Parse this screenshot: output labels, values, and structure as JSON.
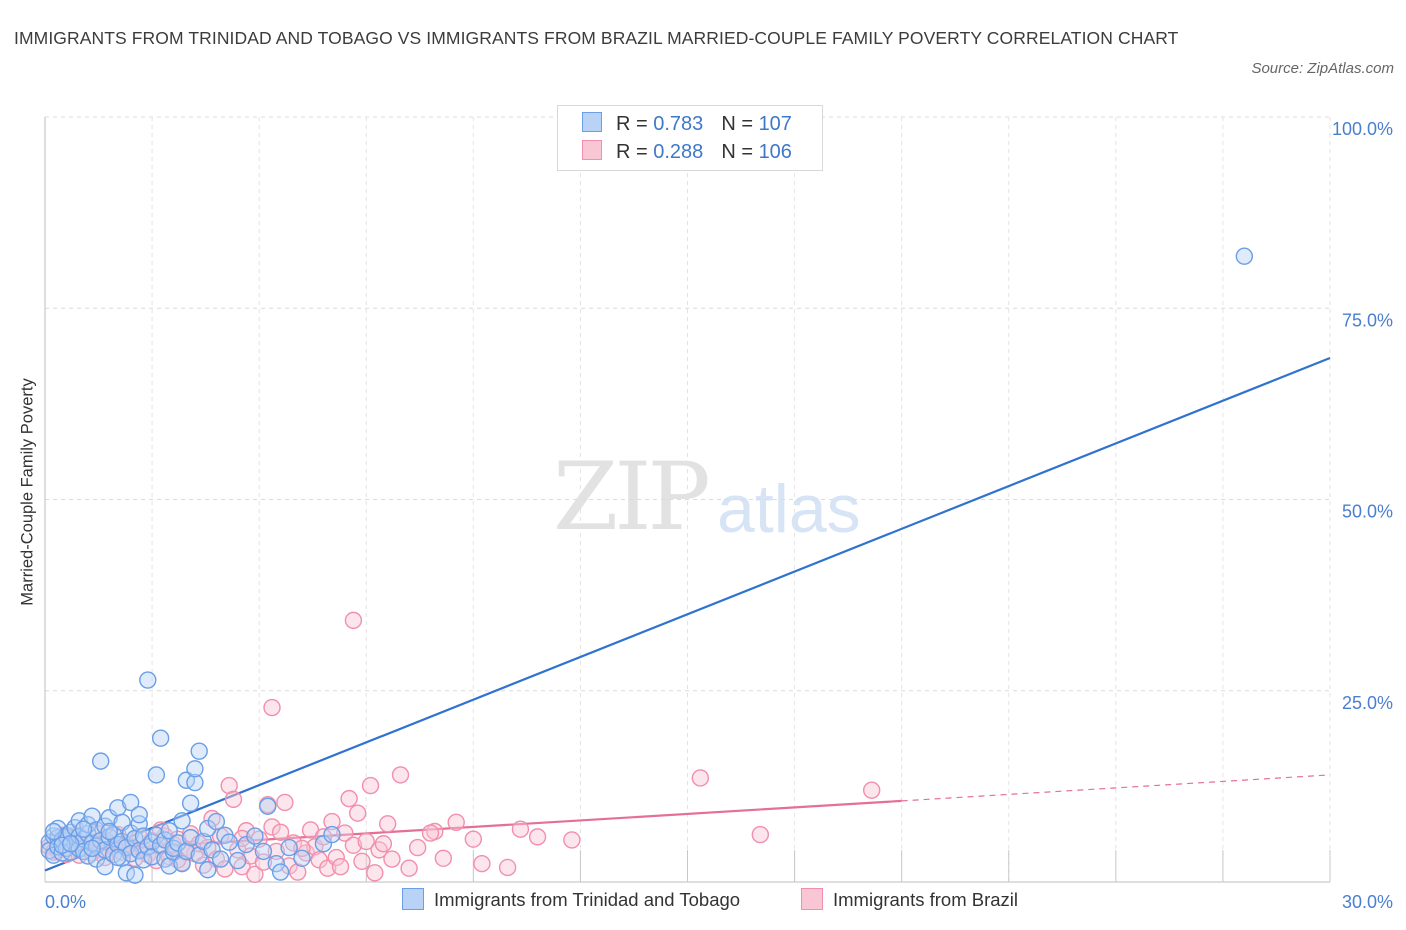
{
  "chart_data": {
    "type": "scatter",
    "title": "IMMIGRANTS FROM TRINIDAD AND TOBAGO VS IMMIGRANTS FROM BRAZIL MARRIED-COUPLE FAMILY POVERTY CORRELATION CHART",
    "source": "Source: ZipAtlas.com",
    "xlabel": "",
    "ylabel": "Married-Couple Family Poverty",
    "xlim": [
      0,
      30
    ],
    "ylim": [
      0,
      100
    ],
    "x_ticks": [
      {
        "value": 0,
        "label": "0.0%"
      },
      {
        "value": 30,
        "label": "30.0%"
      }
    ],
    "y_ticks": [
      {
        "value": 25,
        "label": "25.0%"
      },
      {
        "value": 50,
        "label": "50.0%"
      },
      {
        "value": 75,
        "label": "75.0%"
      },
      {
        "value": 100,
        "label": "100.0%"
      }
    ],
    "grid": true,
    "legend_position": "top-center",
    "watermark": {
      "zip": "ZIP",
      "atlas": "atlas"
    },
    "series": [
      {
        "name": "Immigrants from Trinidad and Tobago",
        "color": "#6a9fe8",
        "fill": "#b9d3f7",
        "line_color": "#2f72d0",
        "R": "0.783",
        "N": "107",
        "trend": {
          "x0": 0,
          "y0": 1.5,
          "x1": 30,
          "y1": 68.5,
          "dashed_from": null
        },
        "points": [
          [
            0.1,
            5.2
          ],
          [
            0.1,
            4.1
          ],
          [
            0.2,
            6.0
          ],
          [
            0.2,
            3.5
          ],
          [
            0.3,
            5.8
          ],
          [
            0.3,
            4.6
          ],
          [
            0.3,
            7.0
          ],
          [
            0.4,
            5.5
          ],
          [
            0.4,
            3.8
          ],
          [
            0.5,
            6.1
          ],
          [
            0.5,
            4.4
          ],
          [
            0.5,
            5.9
          ],
          [
            0.6,
            6.5
          ],
          [
            0.6,
            3.9
          ],
          [
            0.7,
            5.0
          ],
          [
            0.7,
            7.1
          ],
          [
            0.8,
            4.3
          ],
          [
            0.8,
            6.0
          ],
          [
            0.8,
            8.0
          ],
          [
            0.9,
            5.6
          ],
          [
            0.9,
            4.0
          ],
          [
            1.0,
            6.3
          ],
          [
            1.0,
            3.4
          ],
          [
            1.0,
            7.5
          ],
          [
            1.1,
            5.1
          ],
          [
            1.1,
            8.6
          ],
          [
            1.2,
            4.7
          ],
          [
            1.2,
            6.8
          ],
          [
            1.2,
            3.0
          ],
          [
            1.3,
            5.4
          ],
          [
            1.3,
            15.8
          ],
          [
            1.4,
            4.2
          ],
          [
            1.4,
            7.3
          ],
          [
            1.4,
            2.0
          ],
          [
            1.5,
            5.9
          ],
          [
            1.5,
            8.4
          ],
          [
            1.6,
            3.6
          ],
          [
            1.6,
            6.2
          ],
          [
            1.7,
            4.9
          ],
          [
            1.7,
            9.7
          ],
          [
            1.8,
            5.3
          ],
          [
            1.8,
            3.1
          ],
          [
            1.8,
            7.8
          ],
          [
            1.9,
            4.5
          ],
          [
            1.9,
            1.2
          ],
          [
            2.0,
            6.4
          ],
          [
            2.0,
            3.7
          ],
          [
            2.0,
            10.4
          ],
          [
            2.1,
            5.7
          ],
          [
            2.1,
            0.9
          ],
          [
            2.2,
            4.1
          ],
          [
            2.2,
            7.6
          ],
          [
            2.2,
            8.8
          ],
          [
            2.3,
            2.9
          ],
          [
            2.3,
            6.0
          ],
          [
            2.4,
            26.4
          ],
          [
            2.4,
            4.6
          ],
          [
            2.5,
            5.2
          ],
          [
            2.5,
            3.3
          ],
          [
            2.6,
            6.1
          ],
          [
            2.6,
            14.0
          ],
          [
            2.7,
            4.8
          ],
          [
            2.7,
            18.8
          ],
          [
            2.8,
            3.0
          ],
          [
            2.8,
            5.5
          ],
          [
            2.9,
            2.1
          ],
          [
            2.9,
            6.7
          ],
          [
            3.0,
            3.9
          ],
          [
            3.0,
            4.4
          ],
          [
            3.1,
            5.1
          ],
          [
            3.2,
            2.4
          ],
          [
            3.2,
            8.0
          ],
          [
            3.3,
            13.3
          ],
          [
            3.3,
            4.0
          ],
          [
            3.4,
            10.3
          ],
          [
            3.4,
            5.8
          ],
          [
            3.5,
            13.0
          ],
          [
            3.5,
            14.8
          ],
          [
            3.6,
            17.1
          ],
          [
            3.6,
            3.5
          ],
          [
            3.7,
            5.3
          ],
          [
            3.8,
            7.0
          ],
          [
            3.8,
            1.6
          ],
          [
            3.9,
            4.2
          ],
          [
            4.0,
            7.9
          ],
          [
            4.1,
            3.0
          ],
          [
            4.2,
            6.1
          ],
          [
            4.3,
            5.2
          ],
          [
            4.5,
            2.8
          ],
          [
            4.7,
            4.9
          ],
          [
            4.9,
            6.0
          ],
          [
            5.1,
            4.0
          ],
          [
            5.2,
            9.9
          ],
          [
            5.4,
            2.4
          ],
          [
            5.5,
            1.3
          ],
          [
            5.7,
            4.5
          ],
          [
            6.0,
            3.1
          ],
          [
            6.5,
            5.0
          ],
          [
            6.7,
            6.2
          ],
          [
            0.2,
            6.6
          ],
          [
            0.4,
            4.8
          ],
          [
            0.6,
            5.0
          ],
          [
            0.9,
            6.9
          ],
          [
            1.1,
            4.4
          ],
          [
            1.5,
            6.6
          ],
          [
            1.7,
            3.2
          ],
          [
            28.0,
            81.8
          ]
        ]
      },
      {
        "name": "Immigrants from Brazil",
        "color": "#f18fac",
        "fill": "#f9c6d5",
        "line_color": "#e46f97",
        "R": "0.288",
        "N": "106",
        "trend": {
          "x0": 0,
          "y0": 3.8,
          "x1": 30,
          "y1": 14.0,
          "dashed_from": 20.0
        },
        "points": [
          [
            0.1,
            4.6
          ],
          [
            0.2,
            3.9
          ],
          [
            0.3,
            5.3
          ],
          [
            0.3,
            4.1
          ],
          [
            0.4,
            6.1
          ],
          [
            0.5,
            3.6
          ],
          [
            0.6,
            4.9
          ],
          [
            0.7,
            5.8
          ],
          [
            0.8,
            3.5
          ],
          [
            0.9,
            4.4
          ],
          [
            1.0,
            5.2
          ],
          [
            1.1,
            3.8
          ],
          [
            1.2,
            6.4
          ],
          [
            1.3,
            4.2
          ],
          [
            1.4,
            3.2
          ],
          [
            1.5,
            5.1
          ],
          [
            1.6,
            4.6
          ],
          [
            1.7,
            6.2
          ],
          [
            1.8,
            3.9
          ],
          [
            1.9,
            5.0
          ],
          [
            2.0,
            4.5
          ],
          [
            2.1,
            3.1
          ],
          [
            2.2,
            5.9
          ],
          [
            2.3,
            4.3
          ],
          [
            2.4,
            3.6
          ],
          [
            2.5,
            5.4
          ],
          [
            2.6,
            2.8
          ],
          [
            2.7,
            4.7
          ],
          [
            2.8,
            6.0
          ],
          [
            2.9,
            3.3
          ],
          [
            3.0,
            4.9
          ],
          [
            3.1,
            5.6
          ],
          [
            3.2,
            2.5
          ],
          [
            3.3,
            4.1
          ],
          [
            3.4,
            6.3
          ],
          [
            3.5,
            3.7
          ],
          [
            3.6,
            5.0
          ],
          [
            3.7,
            2.2
          ],
          [
            3.8,
            4.5
          ],
          [
            3.9,
            8.3
          ],
          [
            4.0,
            3.0
          ],
          [
            4.1,
            6.0
          ],
          [
            4.2,
            1.7
          ],
          [
            4.3,
            12.6
          ],
          [
            4.4,
            10.8
          ],
          [
            4.5,
            4.2
          ],
          [
            4.6,
            2.0
          ],
          [
            4.7,
            6.7
          ],
          [
            4.8,
            3.4
          ],
          [
            4.9,
            1.0
          ],
          [
            5.0,
            5.6
          ],
          [
            5.1,
            2.6
          ],
          [
            5.2,
            10.1
          ],
          [
            5.3,
            7.2
          ],
          [
            5.4,
            4.0
          ],
          [
            5.5,
            6.5
          ],
          [
            5.6,
            10.4
          ],
          [
            5.7,
            2.1
          ],
          [
            5.8,
            5.1
          ],
          [
            5.9,
            1.3
          ],
          [
            6.1,
            3.8
          ],
          [
            6.2,
            6.8
          ],
          [
            6.3,
            4.6
          ],
          [
            6.4,
            2.9
          ],
          [
            6.5,
            5.9
          ],
          [
            6.6,
            1.8
          ],
          [
            6.7,
            7.9
          ],
          [
            6.8,
            3.2
          ],
          [
            6.9,
            2.0
          ],
          [
            7.0,
            6.4
          ],
          [
            7.1,
            10.9
          ],
          [
            7.2,
            4.8
          ],
          [
            7.3,
            9.0
          ],
          [
            7.4,
            2.7
          ],
          [
            7.5,
            5.3
          ],
          [
            7.6,
            12.6
          ],
          [
            7.7,
            1.2
          ],
          [
            7.8,
            4.2
          ],
          [
            8.0,
            7.6
          ],
          [
            8.1,
            3.0
          ],
          [
            8.3,
            14.0
          ],
          [
            8.5,
            1.8
          ],
          [
            8.7,
            4.5
          ],
          [
            9.1,
            6.6
          ],
          [
            9.3,
            3.1
          ],
          [
            9.6,
            7.8
          ],
          [
            10.0,
            5.6
          ],
          [
            10.2,
            2.4
          ],
          [
            10.8,
            1.9
          ],
          [
            11.1,
            6.9
          ],
          [
            11.5,
            5.9
          ],
          [
            12.3,
            5.5
          ],
          [
            15.3,
            13.6
          ],
          [
            16.7,
            6.2
          ],
          [
            19.3,
            12.0
          ],
          [
            7.2,
            34.2
          ],
          [
            5.3,
            22.8
          ],
          [
            0.6,
            6.0
          ],
          [
            1.4,
            5.5
          ],
          [
            2.7,
            6.8
          ],
          [
            3.3,
            3.9
          ],
          [
            4.6,
            5.7
          ],
          [
            6.0,
            4.4
          ],
          [
            9.0,
            6.4
          ],
          [
            7.9,
            5.0
          ],
          [
            3.1,
            2.9
          ]
        ]
      }
    ]
  }
}
